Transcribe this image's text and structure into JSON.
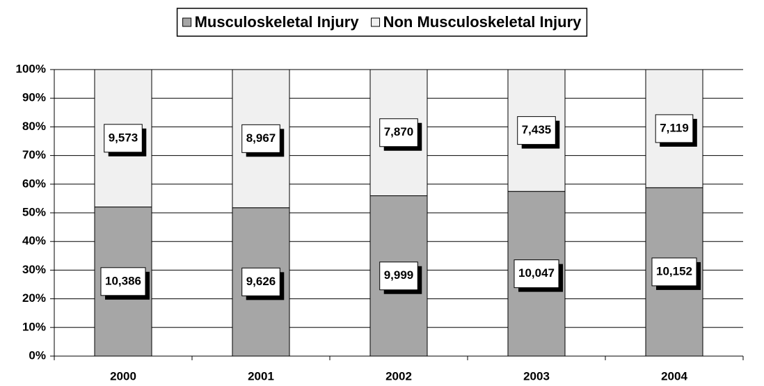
{
  "chart_data": {
    "type": "bar",
    "stacked": "percent",
    "categories": [
      "2000",
      "2001",
      "2002",
      "2003",
      "2004"
    ],
    "series": [
      {
        "name": "Musculoskeletal Injury",
        "color": "#a6a6a6",
        "values": [
          10386,
          9626,
          9999,
          10047,
          10152
        ],
        "value_labels": [
          "10,386",
          "9,626",
          "9,999",
          "10,047",
          "10,152"
        ]
      },
      {
        "name": "Non Musculoskeletal Injury",
        "color": "#f0f0f0",
        "values": [
          9573,
          8967,
          7870,
          7435,
          7119
        ],
        "value_labels": [
          "9,573",
          "8,967",
          "7,870",
          "7,435",
          "7,119"
        ]
      }
    ],
    "ylim": [
      0,
      100
    ],
    "yticks": [
      {
        "value": 0,
        "label": "0%"
      },
      {
        "value": 10,
        "label": "10%"
      },
      {
        "value": 20,
        "label": "20%"
      },
      {
        "value": 30,
        "label": "30%"
      },
      {
        "value": 40,
        "label": "40%"
      },
      {
        "value": 50,
        "label": "50%"
      },
      {
        "value": 60,
        "label": "60%"
      },
      {
        "value": 70,
        "label": "70%"
      },
      {
        "value": 80,
        "label": "80%"
      },
      {
        "value": 90,
        "label": "90%"
      },
      {
        "value": 100,
        "label": "100%"
      }
    ],
    "grid": true,
    "legend": "top"
  }
}
